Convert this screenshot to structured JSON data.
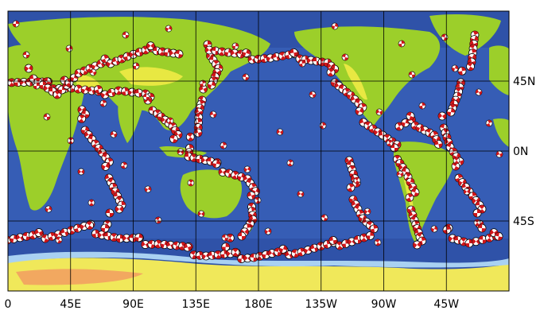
{
  "map": {
    "colors": {
      "deep_ocean": "#2f52a8",
      "mid_ocean": "#3d66bf",
      "shelf": "#7fb4e6",
      "shallow": "#a9d1f2",
      "land": "#9ccf2a",
      "highland": "#e8e842",
      "mountain": "#f2a860",
      "ice": "#f0e85a",
      "event_red": "#d0161a",
      "event_white": "#ffffff"
    },
    "x_ticks": [
      {
        "lon": 0,
        "label": "0"
      },
      {
        "lon": 45,
        "label": "45E"
      },
      {
        "lon": 90,
        "label": "90E"
      },
      {
        "lon": 135,
        "label": "135E"
      },
      {
        "lon": 180,
        "label": "180E"
      },
      {
        "lon": 225,
        "label": "135W"
      },
      {
        "lon": 270,
        "label": "90W"
      },
      {
        "lon": 315,
        "label": "45W"
      }
    ],
    "y_ticks": [
      {
        "lat": 45,
        "label": "45N"
      },
      {
        "lat": 0,
        "label": "0N"
      },
      {
        "lat": -45,
        "label": "45S"
      }
    ],
    "lon_range": [
      0,
      360
    ],
    "lat_range": [
      -90,
      90
    ],
    "grid": true
  }
}
